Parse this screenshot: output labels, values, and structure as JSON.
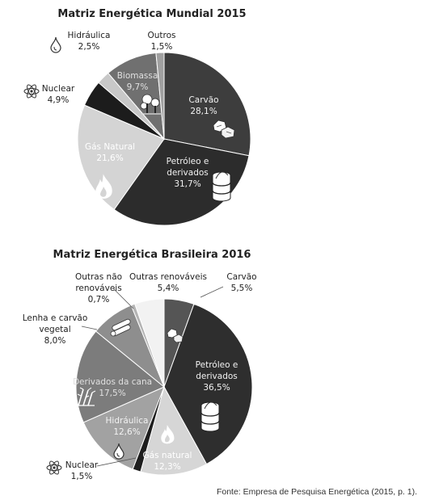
{
  "chart_data": [
    {
      "type": "pie",
      "title": "Matriz Energética Mundial 2015",
      "slices": [
        {
          "name": "Carvão",
          "value": 28.1,
          "value_label": "28,1%",
          "color": "#3d3d3d"
        },
        {
          "name": "Petróleo e derivados",
          "value": 31.7,
          "value_label": "31,7%",
          "color": "#2c2c2c"
        },
        {
          "name": "Gás Natural",
          "value": 21.6,
          "value_label": "21,6%",
          "color": "#d4d4d4"
        },
        {
          "name": "Nuclear",
          "value": 4.9,
          "value_label": "4,9%",
          "color": "#1c1c1c"
        },
        {
          "name": "Hidráulica",
          "value": 2.5,
          "value_label": "2,5%",
          "color": "#c8c8c8"
        },
        {
          "name": "Biomassa",
          "value": 9.7,
          "value_label": "9,7%",
          "color": "#707070"
        },
        {
          "name": "Outros",
          "value": 1.5,
          "value_label": "1,5%",
          "color": "#a0a0a0"
        }
      ]
    },
    {
      "type": "pie",
      "title": "Matriz Energética Brasileira 2016",
      "slices": [
        {
          "name": "Carvão",
          "value": 5.5,
          "value_label": "5,5%",
          "color": "#555555"
        },
        {
          "name": "Petróleo e derivados",
          "value": 36.5,
          "value_label": "36,5%",
          "color": "#2e2e2e"
        },
        {
          "name": "Gás natural",
          "value": 12.3,
          "value_label": "12,3%",
          "color": "#d6d6d6"
        },
        {
          "name": "Nuclear",
          "value": 1.5,
          "value_label": "1,5%",
          "color": "#1e1e1e"
        },
        {
          "name": "Hidráulica",
          "value": 12.6,
          "value_label": "12,6%",
          "color": "#a2a2a2"
        },
        {
          "name": "Derivados da cana",
          "value": 17.5,
          "value_label": "17,5%",
          "color": "#7c7c7c"
        },
        {
          "name": "Lenha e carvão vegetal",
          "value": 8.0,
          "value_label": "8,0%",
          "color": "#8e8e8e"
        },
        {
          "name": "Outras não renováveis",
          "value": 0.7,
          "value_label": "0,7%",
          "color": "#b4b4b4"
        },
        {
          "name": "Outras renováveis",
          "value": 5.4,
          "value_label": "5,4%",
          "color": "#f2f2f2"
        }
      ]
    }
  ],
  "source": "Fonte: Empresa de Pesquisa Energética (2015, p. 1)."
}
